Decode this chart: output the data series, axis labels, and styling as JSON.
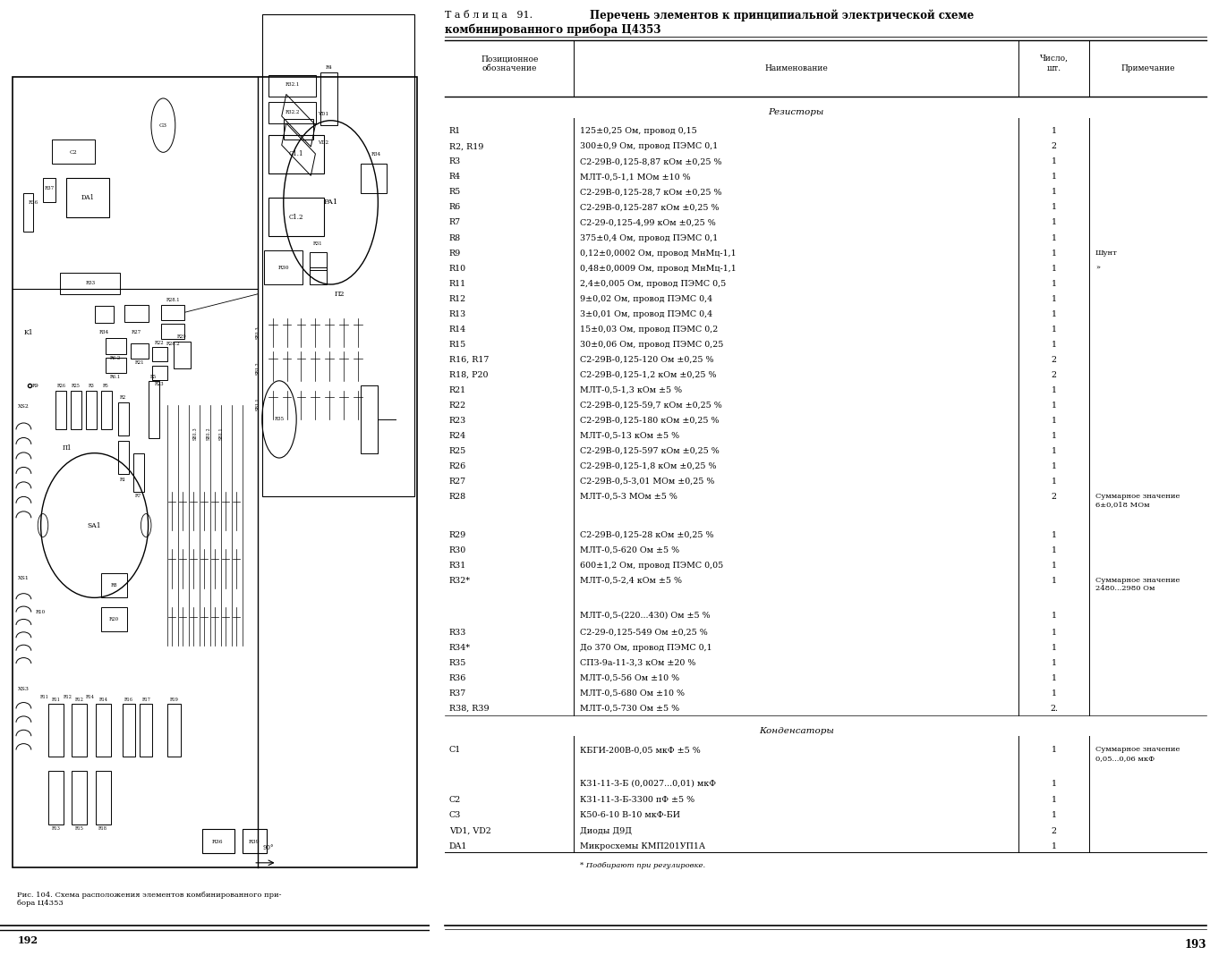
{
  "page_bg": "#ffffff",
  "title_prefix": "Т а б л и ц а   91.  ",
  "title_main": "Перечень элементов к принципиальной электрической схеме",
  "title_sub": "комбинированного прибора Ц4353",
  "col_headers": [
    "Позиционное\nобозначение",
    "Наименование",
    "Число,\nшт.",
    "Примечание"
  ],
  "section_resistors": "Резисторы",
  "section_capacitors": "Конденсаторы",
  "rows": [
    [
      "R1",
      "125±0,25 Ом, провод 0,15",
      "1",
      ""
    ],
    [
      "R2, R19",
      "300±0,9 Ом, провод ПЭМС 0,1",
      "2",
      ""
    ],
    [
      "R3",
      "С2-29В-0,125-8,87 кОм ±0,25 %",
      "1",
      ""
    ],
    [
      "R4",
      "МЛТ-0,5-1,1 МОм ±10 %",
      "1",
      ""
    ],
    [
      "R5",
      "С2-29В-0,125-28,7 кОм ±0,25 %",
      "1",
      ""
    ],
    [
      "R6",
      "С2-29В-0,125-287 кОм ±0,25 %",
      "1",
      ""
    ],
    [
      "R7",
      "С2-29-0,125-4,99 кОм ±0,25 %",
      "1",
      ""
    ],
    [
      "R8",
      "375±0,4 Ом, провод ПЭМС 0,1",
      "1",
      ""
    ],
    [
      "R9",
      "0,12±0,0002 Ом, провод МнМц-1,1",
      "1",
      "Шунт"
    ],
    [
      "R10",
      "0,48±0,0009 Ом, провод МнМц-1,1",
      "1",
      "»"
    ],
    [
      "R11",
      "2,4±0,005 Ом, провод ПЭМС 0,5",
      "1",
      ""
    ],
    [
      "R12",
      "9±0,02 Ом, провод ПЭМС 0,4",
      "1",
      ""
    ],
    [
      "R13",
      "3±0,01 Ом, провод ПЭМС 0,4",
      "1",
      ""
    ],
    [
      "R14",
      "15±0,03 Ом, провод ПЭМС 0,2",
      "1",
      ""
    ],
    [
      "R15",
      "30±0,06 Ом, провод ПЭМС 0,25",
      "1",
      ""
    ],
    [
      "R16, R17",
      "С2-29В-0,125-120 Ом ±0,25 %",
      "2",
      ""
    ],
    [
      "R18, P20",
      "С2-29В-0,125-1,2 кОм ±0,25 %",
      "2",
      ""
    ],
    [
      "R21",
      "МЛТ-0,5-1,3 кОм ±5 %",
      "1",
      ""
    ],
    [
      "R22",
      "С2-29В-0,125-59,7 кОм ±0,25 %",
      "1",
      ""
    ],
    [
      "R23",
      "С2-29В-0,125-180 кОм ±0,25 %",
      "1",
      ""
    ],
    [
      "R24",
      "МЛТ-0,5-13 кОм ±5 %",
      "1",
      ""
    ],
    [
      "R25",
      "С2-29В-0,125-597 кОм ±0,25 %",
      "1",
      ""
    ],
    [
      "R26",
      "С2-29В-0,125-1,8 кОм ±0,25 %",
      "1",
      ""
    ],
    [
      "R27",
      "С2-29В-0,5-3,01 МОм ±0,25 %",
      "1",
      ""
    ],
    [
      "R28",
      "МЛТ-0,5-3 МОм ±5 %",
      "2",
      "Суммарное значение\n6±0,018 МОм"
    ],
    [
      "R29",
      "С2-29В-0,125-28 кОм ±0,25 %",
      "1",
      ""
    ],
    [
      "R30",
      "МЛТ-0,5-620 Ом ±5 %",
      "1",
      ""
    ],
    [
      "R31",
      "600±1,2 Ом, провод ПЭМС 0,05",
      "1",
      ""
    ],
    [
      "R32*",
      "МЛТ-0,5-2,4 кОм ±5 %",
      "1",
      "Суммарное значение\n2480...2980 Ом"
    ],
    [
      "",
      "МЛТ-0,5-(220...430) Ом ±5 %",
      "1",
      ""
    ],
    [
      "R33",
      "С2-29-0,125-549 Ом ±0,25 %",
      "1",
      ""
    ],
    [
      "R34*",
      "До 370 Ом, провод ПЭМС 0,1",
      "1",
      ""
    ],
    [
      "R35",
      "СПЗ-9а-11-3,3 кОм ±20 %",
      "1",
      ""
    ],
    [
      "R36",
      "МЛТ-0,5-56 Ом ±10 %",
      "1",
      ""
    ],
    [
      "R37",
      "МЛТ-0,5-680 Ом ±10 %",
      "1",
      ""
    ],
    [
      "R38, R39",
      "МЛТ-0,5-730 Ом ±5 %",
      "2.",
      ""
    ]
  ],
  "cap_rows": [
    [
      "С1",
      "КБГИ-200В-0,05 мкФ ±5 %",
      "1",
      "Суммарное значение\n0,05...0,06 мкФ"
    ],
    [
      "",
      "К31-11-3-Б (0,0027...0,01) мкФ",
      "1",
      ""
    ],
    [
      "С2",
      "К31-11-3-Б-3300 пФ ±5 %",
      "1",
      ""
    ],
    [
      "С3",
      "К50-6-10 В-10 мкФ-БИ",
      "1",
      ""
    ],
    [
      "VD1, VD2",
      "Диоды Д9Д",
      "2",
      ""
    ],
    [
      "DA1",
      "Микросхемы КМП201УП1А",
      "1",
      ""
    ]
  ],
  "footnote": "* Подбирают при регулировке.",
  "page_left": "192",
  "page_right": "193",
  "fig_caption": "Рис. 104. Схема расположения элементов комбинированного при-\nбора Ц4353"
}
